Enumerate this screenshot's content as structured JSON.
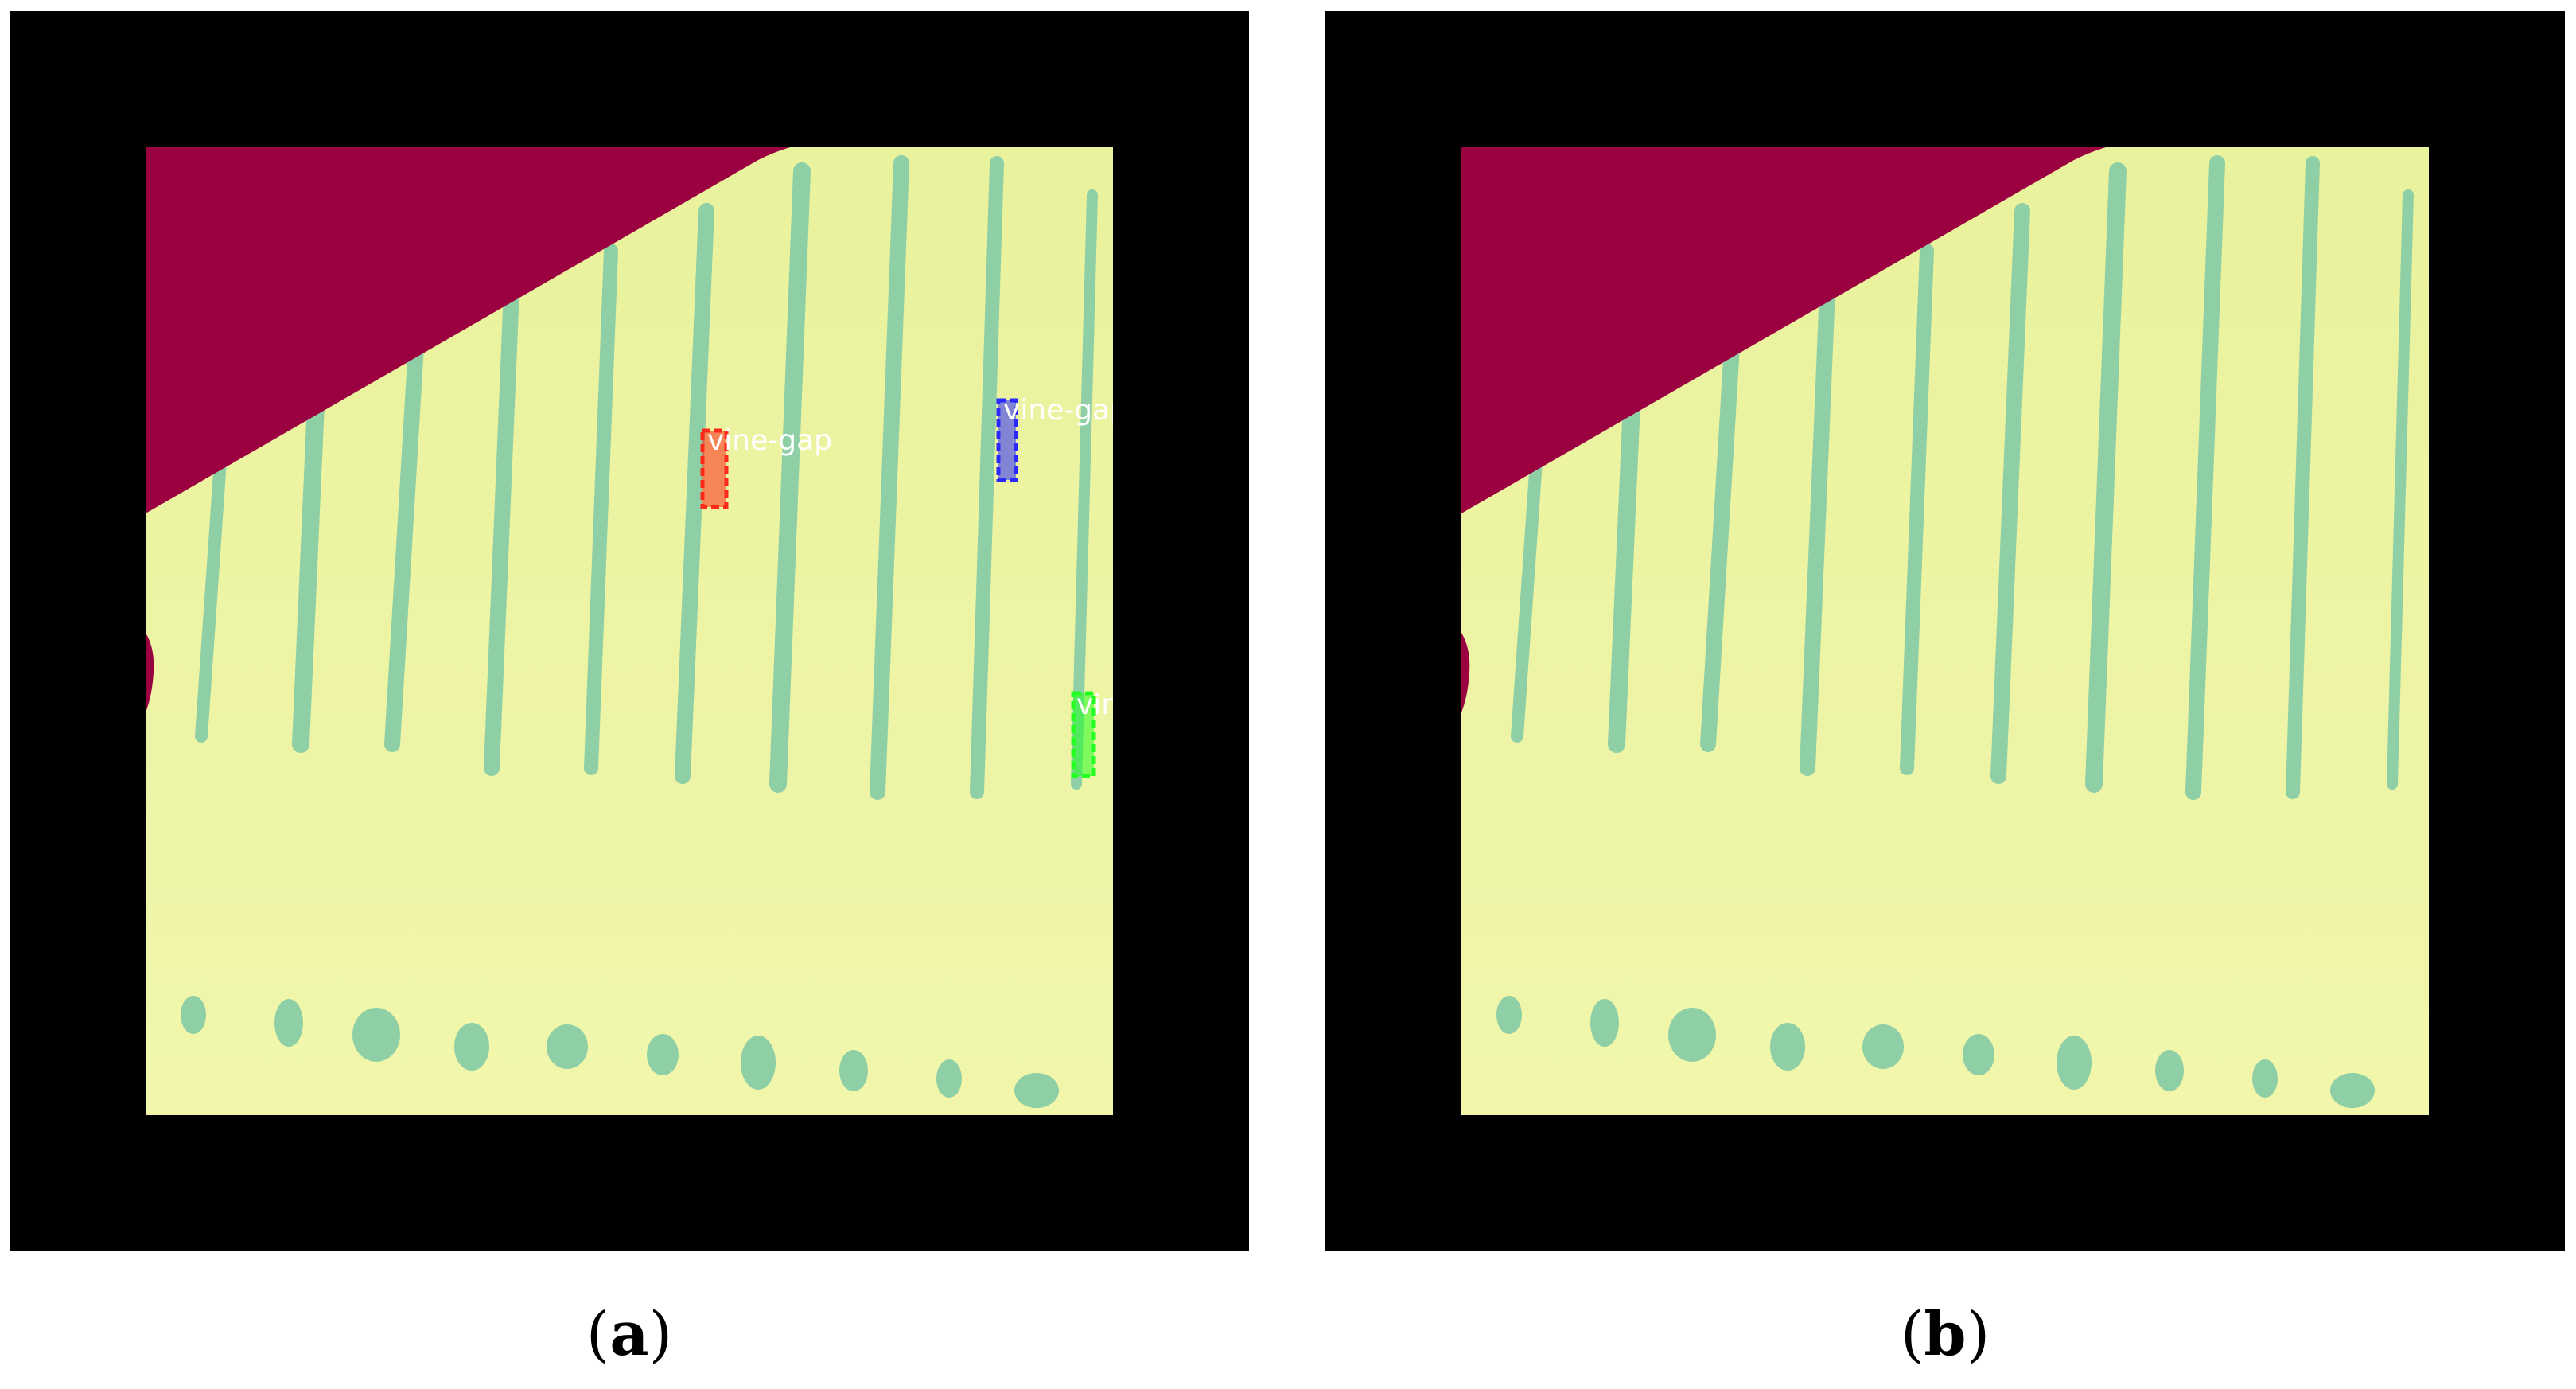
{
  "panels": [
    {
      "id": "a",
      "caption": "a",
      "detections": [
        {
          "label": "vine-gap",
          "color": "#ff2a1a"
        },
        {
          "label": "vine-gap",
          "color": "#2a2aff"
        },
        {
          "label": "vine-gap",
          "color": "#22ff22"
        }
      ]
    },
    {
      "id": "b",
      "caption": "b",
      "detections": []
    }
  ],
  "colors": {
    "background": "#000000",
    "field": "#eef5a2",
    "vines": "#8fcfa6",
    "mask": "#9b0041"
  }
}
